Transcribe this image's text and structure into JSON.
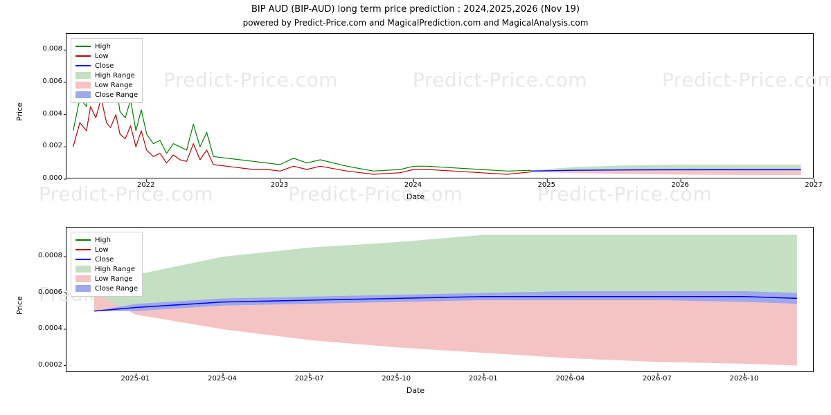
{
  "title_main": "BIP AUD (BIP-AUD) long term price prediction : 2024,2025,2026 (Nov 19)",
  "title_sub": "powered by Predict-Price.com and MagicalPrediction.com and MagicalAnalysis.com",
  "watermark_text": "Predict-Price.com",
  "watermark_color": "#e8e8e8",
  "watermark_fontsize": 28,
  "colors": {
    "high": "#008000",
    "low": "#c00000",
    "close": "#0000ff",
    "high_range": "#c3e0c3",
    "low_range": "#f5c3c3",
    "close_range": "#9fa8e8",
    "axis": "#000000",
    "bg": "#ffffff",
    "legend_border": "#cccccc"
  },
  "legend_labels": [
    "High",
    "Low",
    "Close",
    "High Range",
    "Low Range",
    "Close Range"
  ],
  "top_chart": {
    "type": "line+area",
    "xlabel": "Date",
    "ylabel": "Price",
    "xlim": [
      2021.4,
      2027.0
    ],
    "ylim": [
      0.0,
      0.009
    ],
    "yticks": [
      0.0,
      0.002,
      0.004,
      0.006,
      0.008
    ],
    "ytick_labels": [
      "0.000",
      "0.002",
      "0.004",
      "0.006",
      "0.008"
    ],
    "xticks": [
      2022,
      2023,
      2024,
      2025,
      2026,
      2027
    ],
    "xtick_labels": [
      "2022",
      "2023",
      "2024",
      "2025",
      "2026",
      "2027"
    ],
    "history": {
      "x": [
        2021.45,
        2021.5,
        2021.55,
        2021.58,
        2021.62,
        2021.66,
        2021.7,
        2021.73,
        2021.77,
        2021.8,
        2021.84,
        2021.88,
        2021.92,
        2021.96,
        2022.0,
        2022.05,
        2022.1,
        2022.15,
        2022.2,
        2022.25,
        2022.3,
        2022.35,
        2022.4,
        2022.45,
        2022.5,
        2022.6,
        2022.7,
        2022.8,
        2022.9,
        2023.0,
        2023.1,
        2023.2,
        2023.3,
        2023.5,
        2023.7,
        2023.9,
        2024.0,
        2024.1,
        2024.3,
        2024.5,
        2024.7,
        2024.88
      ],
      "high": [
        0.003,
        0.005,
        0.0045,
        0.007,
        0.0055,
        0.0073,
        0.0052,
        0.0048,
        0.006,
        0.0042,
        0.0038,
        0.0049,
        0.003,
        0.0043,
        0.0028,
        0.0022,
        0.0024,
        0.0016,
        0.0022,
        0.002,
        0.0018,
        0.0034,
        0.002,
        0.0029,
        0.0014,
        0.0013,
        0.0012,
        0.0011,
        0.001,
        0.0009,
        0.0013,
        0.001,
        0.0012,
        0.0008,
        0.0005,
        0.0006,
        0.0008,
        0.0008,
        0.0007,
        0.0006,
        0.0005,
        0.00055
      ],
      "low": [
        0.002,
        0.0035,
        0.003,
        0.0045,
        0.0038,
        0.005,
        0.0035,
        0.0032,
        0.004,
        0.0028,
        0.0025,
        0.0033,
        0.002,
        0.003,
        0.0018,
        0.0014,
        0.0016,
        0.001,
        0.0015,
        0.0012,
        0.0011,
        0.0022,
        0.0012,
        0.0018,
        0.0009,
        0.0008,
        0.0007,
        0.0006,
        0.0006,
        0.0005,
        0.0008,
        0.0006,
        0.0008,
        0.0005,
        0.0003,
        0.0004,
        0.0006,
        0.0006,
        0.0005,
        0.0004,
        0.0003,
        0.00045
      ]
    },
    "forecast": {
      "x": [
        2024.88,
        2025.2,
        2025.6,
        2026.0,
        2026.5,
        2026.9
      ],
      "close": [
        0.0005,
        0.00055,
        0.00057,
        0.00058,
        0.00058,
        0.00058
      ],
      "high_upper": [
        0.00055,
        0.00075,
        0.00085,
        0.0009,
        0.0009,
        0.0009
      ],
      "low_lower": [
        0.00045,
        0.00038,
        0.00032,
        0.00028,
        0.00026,
        0.00025
      ],
      "close_upper": [
        0.00052,
        0.00058,
        0.00062,
        0.00065,
        0.00065,
        0.00065
      ],
      "close_lower": [
        0.00048,
        0.00052,
        0.00054,
        0.00054,
        0.00054,
        0.00054
      ]
    },
    "line_width": 1.2,
    "fill_opacity": 1.0,
    "fontsize_ticks": 10,
    "fontsize_label": 11
  },
  "bottom_chart": {
    "type": "line+area",
    "xlabel": "Date",
    "ylabel": "Price",
    "xlim": [
      2024.8,
      2026.95
    ],
    "ylim": [
      0.00016,
      0.00096
    ],
    "yticks": [
      0.0002,
      0.0004,
      0.0006,
      0.0008
    ],
    "ytick_labels": [
      "0.0002",
      "0.0004",
      "0.0006",
      "0.0008"
    ],
    "xticks": [
      2025.0,
      2025.25,
      2025.5,
      2025.75,
      2026.0,
      2026.25,
      2026.5,
      2026.75
    ],
    "xtick_labels": [
      "2025-01",
      "2025-04",
      "2025-07",
      "2025-10",
      "2026-01",
      "2026-04",
      "2026-07",
      "2026-10"
    ],
    "data": {
      "x": [
        2024.88,
        2025.0,
        2025.25,
        2025.5,
        2025.75,
        2026.0,
        2026.25,
        2026.5,
        2026.75,
        2026.9
      ],
      "close": [
        0.0005,
        0.00052,
        0.00055,
        0.00056,
        0.00057,
        0.00058,
        0.00058,
        0.00058,
        0.00058,
        0.00057
      ],
      "close_upper": [
        0.0005,
        0.00054,
        0.00057,
        0.00058,
        0.00059,
        0.0006,
        0.00061,
        0.00061,
        0.00061,
        0.0006
      ],
      "close_lower": [
        0.0005,
        0.0005,
        0.00053,
        0.00054,
        0.00055,
        0.00056,
        0.00056,
        0.00056,
        0.00055,
        0.00054
      ],
      "high_upper": [
        0.0006,
        0.0007,
        0.0008,
        0.00085,
        0.00088,
        0.00092,
        0.00092,
        0.00092,
        0.00092,
        0.00092
      ],
      "low_lower": [
        0.0006,
        0.00048,
        0.0004,
        0.00034,
        0.0003,
        0.00027,
        0.00024,
        0.00022,
        0.00021,
        0.0002
      ]
    },
    "line_width": 1.6,
    "fill_opacity": 1.0,
    "fontsize_ticks": 10,
    "fontsize_label": 11
  }
}
